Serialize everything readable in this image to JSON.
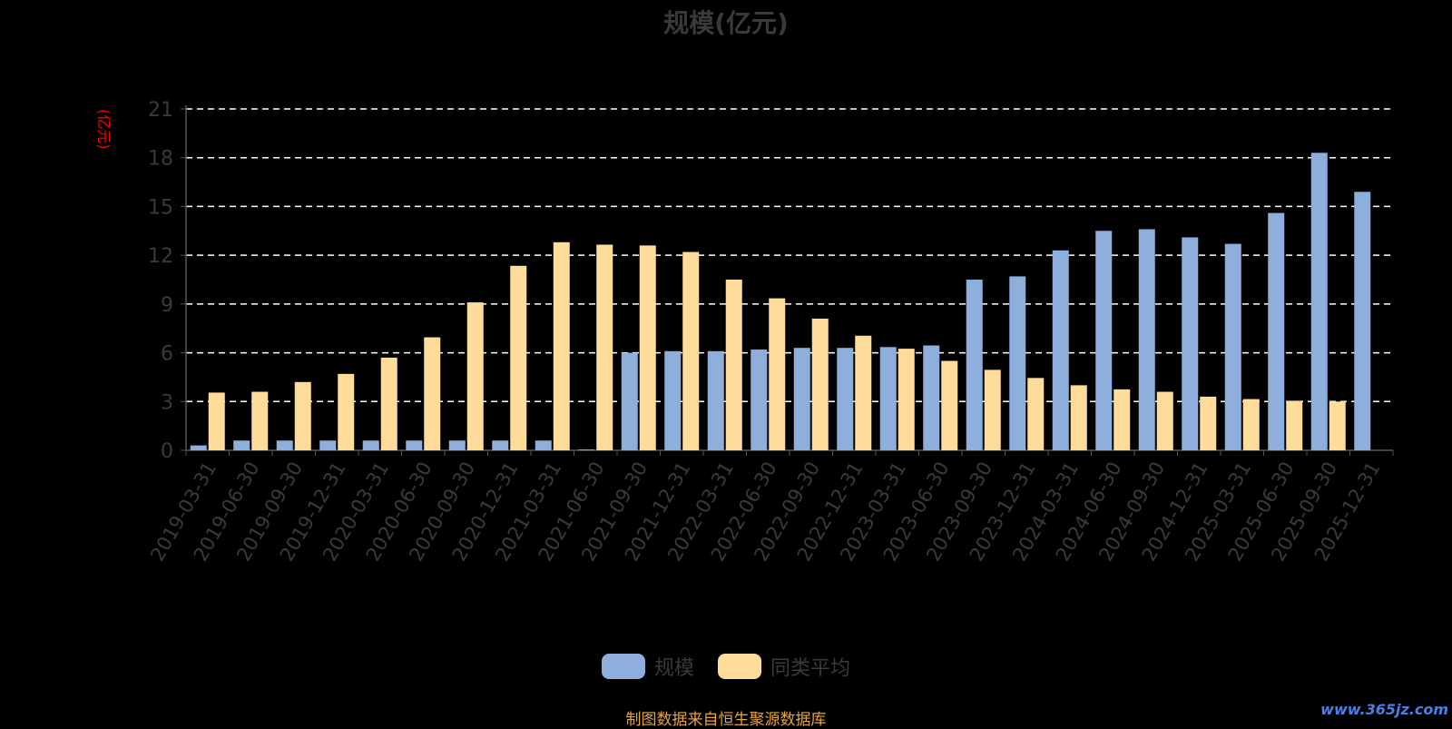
{
  "chart_data": {
    "type": "bar",
    "title": "规模(亿元)",
    "ylabel": "(亿元)",
    "ylim": [
      0,
      21
    ],
    "yticks": [
      0,
      3,
      6,
      9,
      12,
      15,
      18,
      21
    ],
    "grid": true,
    "legend_position": "bottom",
    "categories": [
      "2019-03-31",
      "2019-06-30",
      "2019-09-30",
      "2019-12-31",
      "2020-03-31",
      "2020-06-30",
      "2020-09-30",
      "2020-12-31",
      "2021-03-31",
      "2021-06-30",
      "2021-09-30",
      "2021-12-31",
      "2022-03-31",
      "2022-06-30",
      "2022-09-30",
      "2022-12-31",
      "2023-03-31",
      "2023-06-30",
      "2023-09-30",
      "2023-12-31",
      "2024-03-31",
      "2024-06-30",
      "2024-09-30",
      "2024-12-31",
      "2025-03-31",
      "2025-06-30",
      "2025-09-30",
      "2025-12-31"
    ],
    "series": [
      {
        "name": "规模",
        "color": "#8eaedb",
        "values": [
          0.3,
          0.6,
          0.6,
          0.6,
          0.6,
          0.6,
          0.6,
          0.6,
          0.6,
          0.05,
          6.0,
          6.1,
          6.1,
          6.2,
          6.3,
          6.3,
          6.35,
          6.45,
          10.5,
          10.7,
          12.3,
          13.5,
          13.6,
          13.1,
          12.7,
          14.6,
          18.3,
          15.9
        ]
      },
      {
        "name": "同类平均",
        "color": "#ffdc9a",
        "values": [
          3.55,
          3.6,
          4.2,
          4.7,
          5.7,
          6.95,
          9.1,
          11.35,
          12.8,
          12.65,
          12.6,
          12.2,
          10.5,
          9.35,
          8.1,
          7.05,
          6.25,
          5.5,
          4.95,
          4.45,
          4.0,
          3.75,
          3.6,
          3.3,
          3.15,
          3.05,
          3.0,
          null
        ]
      }
    ]
  },
  "footer": {
    "source": "制图数据来自恒生聚源数据库",
    "watermark": "www.365jz.com"
  },
  "colors": {
    "grid": "#ffffff",
    "axis": "#555555",
    "tick_text": "#3a3a3a"
  }
}
